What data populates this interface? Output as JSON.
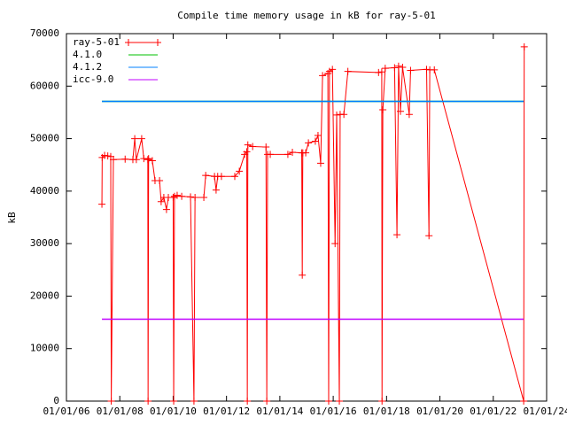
{
  "chart_data": {
    "type": "line",
    "title": "Compile time memory usage in kB for ray-5-01",
    "y_label": "kB",
    "xlim": [
      2006,
      2024
    ],
    "xticks": [
      {
        "value": 2006,
        "label": "01/01/06"
      },
      {
        "value": 2008,
        "label": "01/01/08"
      },
      {
        "value": 2010,
        "label": "01/01/10"
      },
      {
        "value": 2012,
        "label": "01/01/12"
      },
      {
        "value": 2014,
        "label": "01/01/14"
      },
      {
        "value": 2016,
        "label": "01/01/16"
      },
      {
        "value": 2018,
        "label": "01/01/18"
      },
      {
        "value": 2020,
        "label": "01/01/20"
      },
      {
        "value": 2022,
        "label": "01/01/22"
      },
      {
        "value": 2024,
        "label": "01/01/24"
      }
    ],
    "ylim": [
      0,
      70000
    ],
    "yticks": [
      0,
      10000,
      20000,
      30000,
      40000,
      50000,
      60000,
      70000
    ],
    "legend": "top-left",
    "series": [
      {
        "name": "ray-5-01",
        "color": "#ff0000",
        "markers": true,
        "x": [
          2007.33,
          2007.34,
          2007.43,
          2007.55,
          2007.66,
          2007.68,
          2007.76,
          2008.2,
          2008.49,
          2008.56,
          2008.62,
          2008.82,
          2008.9,
          2009.05,
          2009.06,
          2009.08,
          2009.22,
          2009.32,
          2009.49,
          2009.55,
          2009.65,
          2009.75,
          2009.82,
          2010.0,
          2010.02,
          2010.05,
          2010.15,
          2010.32,
          2010.65,
          2010.78,
          2010.82,
          2011.15,
          2011.22,
          2011.55,
          2011.61,
          2011.67,
          2011.81,
          2012.31,
          2012.48,
          2012.68,
          2012.76,
          2012.78,
          2012.8,
          2012.98,
          2013.48,
          2013.51,
          2013.54,
          2013.64,
          2014.3,
          2014.47,
          2014.82,
          2014.84,
          2014.86,
          2014.97,
          2015.07,
          2015.33,
          2015.43,
          2015.53,
          2015.6,
          2015.8,
          2015.83,
          2015.86,
          2015.97,
          2016.07,
          2016.13,
          2016.23,
          2016.26,
          2016.4,
          2016.55,
          2017.7,
          2017.82,
          2017.83,
          2017.86,
          2017.95,
          2018.3,
          2018.39,
          2018.45,
          2018.52,
          2018.6,
          2018.85,
          2018.9,
          2019.5,
          2019.59,
          2019.62,
          2019.79,
          2023.14,
          2023.16
        ],
        "values": [
          37500,
          46400,
          46800,
          46700,
          46600,
          0,
          46000,
          46100,
          46000,
          50000,
          46000,
          50000,
          46200,
          46000,
          0,
          46200,
          45800,
          42000,
          42000,
          38000,
          38800,
          36500,
          38800,
          38800,
          0,
          39000,
          39200,
          39000,
          38900,
          0,
          38800,
          38800,
          43000,
          42800,
          40200,
          42800,
          42800,
          42800,
          43800,
          47000,
          47500,
          0,
          48800,
          48500,
          48400,
          0,
          47000,
          47000,
          47000,
          47400,
          47300,
          24000,
          47300,
          47300,
          49200,
          49500,
          50600,
          45300,
          62000,
          62400,
          0,
          62800,
          63200,
          30000,
          54500,
          0,
          54600,
          54600,
          62800,
          62600,
          62700,
          0,
          55500,
          63400,
          63500,
          31700,
          63800,
          55200,
          63600,
          54600,
          63000,
          63200,
          31500,
          63100,
          63100,
          0,
          67500
        ]
      },
      {
        "name": "4.1.0",
        "color": "#00c000",
        "x": [
          2007.33,
          2023.14
        ],
        "values": [
          57100,
          57100
        ]
      },
      {
        "name": "4.1.2",
        "color": "#0080ff",
        "x": [
          2007.33,
          2023.14
        ],
        "values": [
          57100,
          57100
        ]
      },
      {
        "name": "icc-9.0",
        "color": "#c000ff",
        "x": [
          2007.33,
          2023.14
        ],
        "values": [
          15600,
          15600
        ]
      }
    ]
  }
}
